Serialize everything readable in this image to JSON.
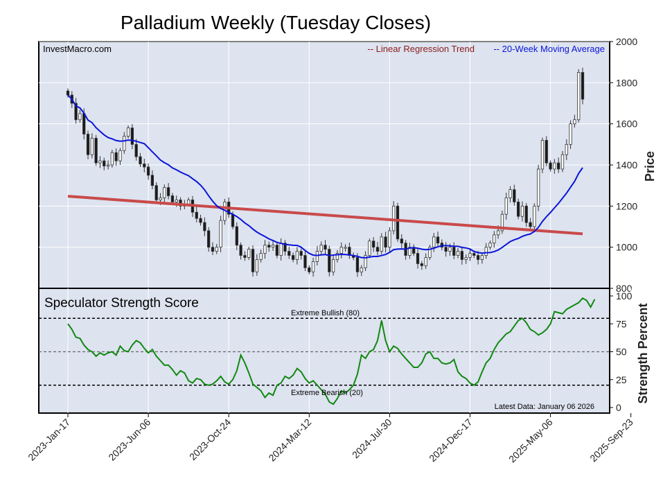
{
  "chart_data": {
    "title": "Palladium Weekly (Tuesday Closes)",
    "watermark": "InvestMacro.com",
    "legend": {
      "regression_label": "-- Linear Regression Trend",
      "ma_label": "-- 20-Week Moving Average",
      "placement": "top-right"
    },
    "colors": {
      "background": "#dde3ef",
      "regression": "#c94a4a",
      "moving_average": "#0a14d8",
      "regression_text": "#8b1a1a",
      "strength_line": "#118811",
      "candle_up": "#ffffff",
      "candle_down": "#1a1a1a"
    },
    "x_tick_labels": [
      "2023-Jan-17",
      "2023-Jun-06",
      "2023-Oct-24",
      "2024-Mar-12",
      "2024-Jul-30",
      "2024-Dec-17",
      "2025-May-06",
      "2025-Sep-23"
    ],
    "x_tick_weeks": [
      0,
      20,
      40,
      60,
      80,
      100,
      120,
      140
    ],
    "price_panel": {
      "type": "candlestick",
      "ylabel": "Price",
      "ylim": [
        800,
        2000
      ],
      "y_ticks": [
        800,
        1000,
        1200,
        1400,
        1600,
        1800,
        2000
      ],
      "grid": true,
      "regression": {
        "start": 1248,
        "end": 1065
      },
      "closes": [
        1740,
        1700,
        1620,
        1650,
        1550,
        1450,
        1530,
        1410,
        1420,
        1395,
        1400,
        1460,
        1420,
        1470,
        1540,
        1580,
        1500,
        1440,
        1405,
        1390,
        1350,
        1300,
        1230,
        1240,
        1290,
        1250,
        1220,
        1230,
        1200,
        1210,
        1230,
        1170,
        1140,
        1120,
        1080,
        1000,
        980,
        1000,
        1130,
        1220,
        1160,
        1100,
        1010,
        960,
        950,
        990,
        880,
        940,
        970,
        1010,
        1000,
        1010,
        960,
        1020,
        980,
        960,
        940,
        980,
        960,
        900,
        880,
        930,
        980,
        1010,
        990,
        880,
        940,
        970,
        1000,
        1000,
        960,
        950,
        880,
        900,
        960,
        1030,
        1000,
        980,
        1050,
        1000,
        1080,
        1200,
        1040,
        1020,
        960,
        1000,
        970,
        920,
        910,
        950,
        1000,
        1050,
        1020,
        1000,
        980,
        1000,
        960,
        980,
        940,
        950,
        970,
        960,
        940,
        960,
        1000,
        1020,
        1060,
        1080,
        1160,
        1240,
        1280,
        1220,
        1150,
        1200,
        1120,
        1100,
        1200,
        1380,
        1520,
        1410,
        1380,
        1410,
        1380,
        1450,
        1500,
        1600,
        1620,
        1850,
        1720
      ]
    },
    "strength_panel": {
      "type": "line",
      "title": "Speculator Strength Score",
      "ylabel": "Strength Percent",
      "ylim": [
        0,
        100
      ],
      "y_ticks": [
        0,
        25,
        50,
        75,
        100
      ],
      "extreme_bullish_label": "Extreme Bullish (80)",
      "extreme_bearish_label": "Extreme Bearish (20)",
      "midline": 50,
      "latest_data": "Latest Data: January 06 2026",
      "values": [
        75,
        70,
        63,
        62,
        56,
        52,
        50,
        46,
        49,
        47,
        49,
        50,
        47,
        55,
        51,
        50,
        56,
        60,
        58,
        53,
        49,
        52,
        46,
        42,
        38,
        38,
        34,
        29,
        33,
        31,
        24,
        22,
        26,
        25,
        21,
        20,
        21,
        24,
        28,
        23,
        21,
        25,
        33,
        47,
        40,
        31,
        21,
        18,
        15,
        9,
        13,
        11,
        20,
        22,
        28,
        26,
        29,
        35,
        32,
        26,
        22,
        24,
        20,
        16,
        12,
        5,
        3,
        8,
        15,
        13,
        16,
        20,
        30,
        47,
        44,
        50,
        52,
        60,
        78,
        60,
        50,
        55,
        53,
        48,
        44,
        40,
        36,
        36,
        40,
        48,
        50,
        44,
        44,
        40,
        39,
        40,
        43,
        32,
        28,
        26,
        22,
        20,
        23,
        32,
        40,
        44,
        52,
        58,
        62,
        66,
        68,
        73,
        78,
        80,
        76,
        70,
        68,
        65,
        67,
        70,
        75,
        86,
        85,
        84,
        88,
        90,
        92,
        94,
        98,
        96,
        90,
        97
      ]
    }
  }
}
